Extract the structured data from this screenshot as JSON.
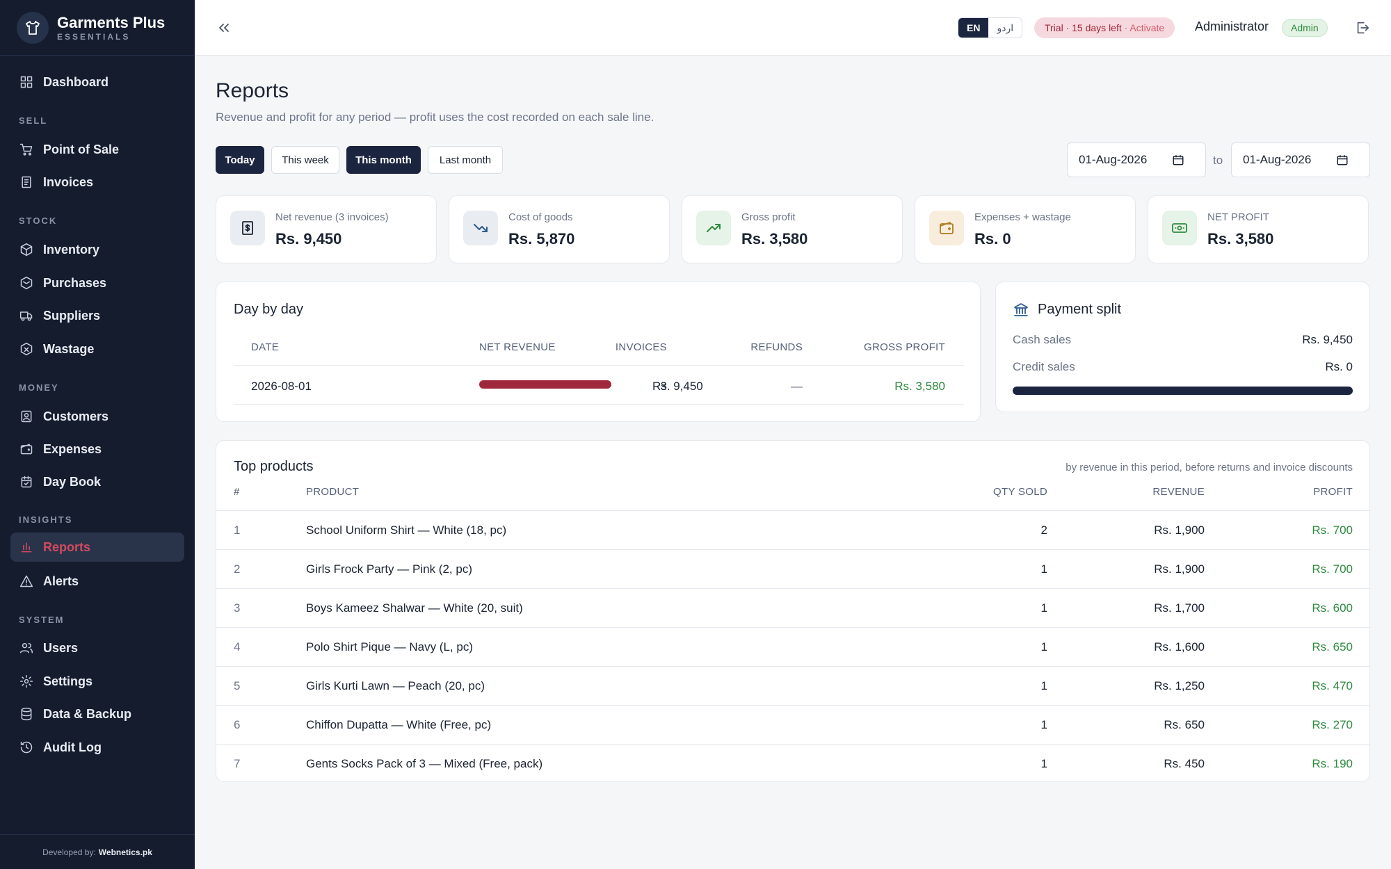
{
  "brand": {
    "name": "Garments Plus",
    "subtitle": "ESSENTIALS"
  },
  "sidebar": {
    "items": [
      {
        "label": "Dashboard",
        "icon": "dashboard-icon"
      },
      {
        "label": "Point of Sale",
        "icon": "cart-icon"
      },
      {
        "label": "Invoices",
        "icon": "invoice-icon"
      },
      {
        "label": "Inventory",
        "icon": "box-icon"
      },
      {
        "label": "Purchases",
        "icon": "purchase-icon"
      },
      {
        "label": "Suppliers",
        "icon": "truck-icon"
      },
      {
        "label": "Wastage",
        "icon": "wastage-icon"
      },
      {
        "label": "Customers",
        "icon": "customer-icon"
      },
      {
        "label": "Expenses",
        "icon": "wallet-icon"
      },
      {
        "label": "Day Book",
        "icon": "calendar-check-icon"
      },
      {
        "label": "Reports",
        "icon": "bar-chart-icon",
        "active": true
      },
      {
        "label": "Alerts",
        "icon": "alert-triangle-icon"
      },
      {
        "label": "Users",
        "icon": "users-icon"
      },
      {
        "label": "Settings",
        "icon": "gear-icon"
      },
      {
        "label": "Data & Backup",
        "icon": "database-icon"
      },
      {
        "label": "Audit Log",
        "icon": "history-icon"
      }
    ],
    "sections": [
      "SELL",
      "STOCK",
      "MONEY",
      "INSIGHTS",
      "SYSTEM"
    ],
    "footer": {
      "prefix": "Developed by:",
      "company": "Webnetics.pk"
    }
  },
  "topbar": {
    "lang_en": "EN",
    "lang_ur": "اردو",
    "trial": "Trial · 15 days left",
    "trial_action": "· Activate",
    "user": "Administrator",
    "role": "Admin"
  },
  "page": {
    "title": "Reports",
    "subtitle": "Revenue and profit for any period — profit uses the cost recorded on each sale line."
  },
  "filters": {
    "periods": [
      "Today",
      "This week",
      "This month",
      "Last month"
    ],
    "active_periods": [
      "Today",
      "This month"
    ],
    "date_from": "01-Aug-2026",
    "date_to": "01-Aug-2026",
    "to_label": "to"
  },
  "kpis": [
    {
      "label": "Net revenue (3 invoices)",
      "value": "Rs. 9,450",
      "icon": "receipt-icon",
      "bg": "#e9ecf1",
      "color": "#1b2433"
    },
    {
      "label": "Cost of goods",
      "value": "Rs. 5,870",
      "icon": "trending-down-icon",
      "bg": "#e9ecf1",
      "color": "#2d5a8a"
    },
    {
      "label": "Gross profit",
      "value": "Rs. 3,580",
      "icon": "trending-up-icon",
      "bg": "#e6f3e8",
      "color": "#2f8a3e"
    },
    {
      "label": "Expenses + wastage",
      "value": "Rs. 0",
      "icon": "wallet-icon",
      "bg": "#f8eddc",
      "color": "#b07a22"
    },
    {
      "label": "NET PROFIT",
      "value": "Rs. 3,580",
      "icon": "cash-icon",
      "bg": "#e6f3e8",
      "color": "#2f8a3e"
    }
  ],
  "day_by_day": {
    "title": "Day by day",
    "columns": [
      "DATE",
      "INVOICES",
      "NET REVENUE",
      "REFUNDS",
      "GROSS PROFIT"
    ],
    "rows": [
      {
        "date": "2026-08-01",
        "invoices": "3",
        "revenue": "Rs. 9,450",
        "revenue_fraction": 1.0,
        "refunds": "—",
        "profit": "Rs. 3,580"
      }
    ],
    "bar_color": "#a0283d"
  },
  "payment_split": {
    "title": "Payment split",
    "cash_label": "Cash sales",
    "cash_value": "Rs. 9,450",
    "credit_label": "Credit sales",
    "credit_value": "Rs. 0",
    "cash_fraction": 1.0
  },
  "top_products": {
    "title": "Top products",
    "note": "by revenue in this period, before returns and invoice discounts",
    "columns": [
      "#",
      "PRODUCT",
      "QTY SOLD",
      "REVENUE",
      "PROFIT"
    ],
    "rows": [
      {
        "rank": "1",
        "product": "School Uniform Shirt — White (18, pc)",
        "qty": "2",
        "revenue": "Rs. 1,900",
        "profit": "Rs. 700"
      },
      {
        "rank": "2",
        "product": "Girls Frock Party — Pink (2, pc)",
        "qty": "1",
        "revenue": "Rs. 1,900",
        "profit": "Rs. 700"
      },
      {
        "rank": "3",
        "product": "Boys Kameez Shalwar — White (20, suit)",
        "qty": "1",
        "revenue": "Rs. 1,700",
        "profit": "Rs. 600"
      },
      {
        "rank": "4",
        "product": "Polo Shirt Pique — Navy (L, pc)",
        "qty": "1",
        "revenue": "Rs. 1,600",
        "profit": "Rs. 650"
      },
      {
        "rank": "5",
        "product": "Girls Kurti Lawn — Peach (20, pc)",
        "qty": "1",
        "revenue": "Rs. 1,250",
        "profit": "Rs. 470"
      },
      {
        "rank": "6",
        "product": "Chiffon Dupatta — White (Free, pc)",
        "qty": "1",
        "revenue": "Rs. 650",
        "profit": "Rs. 270"
      },
      {
        "rank": "7",
        "product": "Gents Socks Pack of 3 — Mixed (Free, pack)",
        "qty": "1",
        "revenue": "Rs. 450",
        "profit": "Rs. 190"
      }
    ]
  }
}
